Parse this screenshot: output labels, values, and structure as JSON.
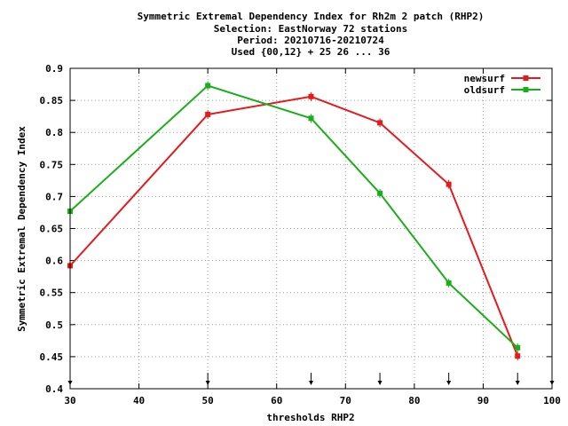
{
  "chart_data": {
    "type": "line",
    "title_lines": [
      "Symmetric Extremal Dependency Index  for Rh2m 2 patch (RHP2)",
      "Selection: EastNorway     72 stations",
      "Period: 20210716-20210724",
      "Used {00,12} + 25 26 ... 36"
    ],
    "xlabel": "thresholds RHP2",
    "ylabel": "Symmetric Extremal Dependency Index",
    "xlim": [
      30,
      100
    ],
    "ylim": [
      0.4,
      0.9
    ],
    "x_ticks": [
      30,
      40,
      50,
      60,
      70,
      80,
      90,
      100
    ],
    "y_ticks": [
      0.4,
      0.45,
      0.5,
      0.55,
      0.6,
      0.65,
      0.7,
      0.75,
      0.8,
      0.85,
      0.9
    ],
    "y_tick_labels": [
      "0.4",
      "0.45",
      "0.5",
      "0.55",
      "0.6",
      "0.65",
      "0.7",
      "0.75",
      "0.8",
      "0.85",
      "0.9"
    ],
    "grid": true,
    "legend_position": "top-right",
    "threshold_markers": [
      30,
      50,
      65,
      75,
      85,
      95,
      100
    ],
    "series": [
      {
        "name": "newsurf",
        "color": "#e41a1c",
        "x": [
          30,
          50,
          65,
          75,
          85,
          95
        ],
        "y": [
          0.592,
          0.828,
          0.856,
          0.815,
          0.719,
          0.451
        ]
      },
      {
        "name": "oldsurf",
        "color": "#1aaf1a",
        "x": [
          30,
          50,
          65,
          75,
          85,
          95
        ],
        "y": [
          0.677,
          0.873,
          0.822,
          0.705,
          0.565,
          0.464
        ]
      }
    ]
  }
}
